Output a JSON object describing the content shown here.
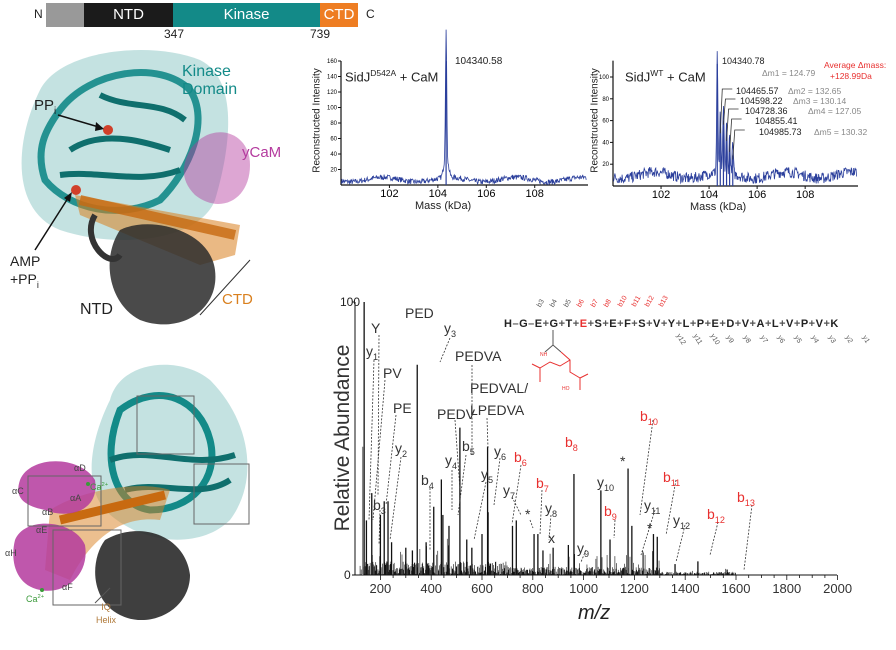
{
  "domain_bar": {
    "n_label": "N",
    "c_label": "C",
    "segments": [
      {
        "label": "NTD",
        "color": "#1b1b1b"
      },
      {
        "label": "Kinase",
        "color": "#138a88"
      },
      {
        "label": "CTD",
        "color": "#ee7d22"
      }
    ],
    "boundaries": [
      "347",
      "739"
    ]
  },
  "structure_top": {
    "kinase_label_1": "Kinase",
    "kinase_label_2": "Domain",
    "ppi_label": "PP",
    "ppi_sub": "i",
    "ycam_label": "yCaM",
    "amp_label_1": "AMP",
    "amp_label_2": "+PP",
    "amp_sub": "i",
    "ntd_label": "NTD",
    "ctd_label": "CTD"
  },
  "structure_bottom": {
    "helices": [
      "αD",
      "αC",
      "αA",
      "αB",
      "αE",
      "αH",
      "αF"
    ],
    "ca_label": "Ca",
    "ca_sup": "2+",
    "iq_label_1": "IQ",
    "iq_label_2": "Helix"
  },
  "colors": {
    "teal": "#138a88",
    "magenta": "#b43a9e",
    "orange": "#d9801f",
    "black": "#222222",
    "blue_trace": "#2b3f9c",
    "red": "#e8302f"
  },
  "chart_data": [
    {
      "type": "line",
      "title": "SidJ",
      "title_sup": "D542A",
      "title_rest": "+  CaM",
      "xlabel": "Mass (kDa)",
      "ylabel": "Reconstructed Intensity",
      "xlim": [
        100,
        110.2
      ],
      "ylim": [
        0,
        160
      ],
      "xticks": [
        "102",
        "104",
        "106",
        "108"
      ],
      "xtick_values": [
        102,
        104,
        106,
        108
      ],
      "yticks": [
        "20",
        "40",
        "60",
        "80",
        "100",
        "120",
        "140",
        "160"
      ],
      "ytick_values": [
        20,
        40,
        60,
        80,
        100,
        120,
        140,
        160
      ],
      "baseline_level": 7,
      "peaks": [
        {
          "x": 104.34,
          "y": 160,
          "label": "104340.58"
        }
      ]
    },
    {
      "type": "line",
      "title": "SidJ",
      "title_sup": "WT",
      "title_rest": "+  CaM",
      "xlabel": "Mass (kDa)",
      "ylabel": "Reconstructed Intensity",
      "xlim": [
        100,
        110.2
      ],
      "ylim": [
        0,
        115
      ],
      "xticks": [
        "102",
        "104",
        "106",
        "108"
      ],
      "xtick_values": [
        102,
        104,
        106,
        108
      ],
      "yticks": [
        "20",
        "40",
        "60",
        "80",
        "100"
      ],
      "ytick_values": [
        20,
        40,
        60,
        80,
        100
      ],
      "baseline_level": 10,
      "peaks": [
        {
          "x": 104.341,
          "y": 112,
          "label": "104340.78"
        },
        {
          "x": 104.466,
          "y": 52,
          "label": "104465.57"
        },
        {
          "x": 104.598,
          "y": 60,
          "label": "104598.22"
        },
        {
          "x": 104.728,
          "y": 45,
          "label": "104728.36"
        },
        {
          "x": 104.855,
          "y": 35,
          "label": "104855.41"
        },
        {
          "x": 104.986,
          "y": 28,
          "label": "104985.73"
        }
      ],
      "deltas": [
        "Δm1 = 124.79",
        "Δm2 = 132.65",
        "Δm3 = 130.14",
        "Δm4 = 127.05",
        "Δm5 = 130.32"
      ],
      "average_label": "Average Δmass:",
      "average_value": "+128.99Da"
    },
    {
      "type": "bar",
      "xlabel": "m/z",
      "ylabel": "Relative Abundance",
      "xlim": [
        100,
        2000
      ],
      "ylim": [
        0,
        100
      ],
      "xticks": [
        "200",
        "400",
        "600",
        "800",
        "1000",
        "1200",
        "1400",
        "1600",
        "1800",
        "2000"
      ],
      "xtick_values": [
        200,
        400,
        600,
        800,
        1000,
        1200,
        1400,
        1600,
        1800,
        2000
      ],
      "yticks": [
        "0",
        "100"
      ],
      "ytick_values": [
        0,
        100
      ],
      "peaks": [
        {
          "x": 130,
          "y": 47
        },
        {
          "x": 136,
          "y": 100
        },
        {
          "x": 145,
          "y": 20
        },
        {
          "x": 166,
          "y": 30
        },
        {
          "x": 200,
          "y": 22
        },
        {
          "x": 215,
          "y": 27
        },
        {
          "x": 230,
          "y": 27
        },
        {
          "x": 244,
          "y": 12
        },
        {
          "x": 300,
          "y": 10
        },
        {
          "x": 326,
          "y": 9
        },
        {
          "x": 345,
          "y": 77
        },
        {
          "x": 380,
          "y": 12
        },
        {
          "x": 410,
          "y": 25
        },
        {
          "x": 440,
          "y": 35
        },
        {
          "x": 446,
          "y": 22
        },
        {
          "x": 470,
          "y": 18
        },
        {
          "x": 513,
          "y": 54
        },
        {
          "x": 540,
          "y": 13
        },
        {
          "x": 560,
          "y": 10
        },
        {
          "x": 600,
          "y": 15
        },
        {
          "x": 622,
          "y": 47
        },
        {
          "x": 624,
          "y": 23
        },
        {
          "x": 720,
          "y": 18
        },
        {
          "x": 735,
          "y": 20
        },
        {
          "x": 805,
          "y": 15
        },
        {
          "x": 820,
          "y": 15
        },
        {
          "x": 840,
          "y": 9
        },
        {
          "x": 880,
          "y": 10
        },
        {
          "x": 940,
          "y": 11
        },
        {
          "x": 962,
          "y": 37
        },
        {
          "x": 1068,
          "y": 31
        },
        {
          "x": 1104,
          "y": 13
        },
        {
          "x": 1175,
          "y": 39
        },
        {
          "x": 1190,
          "y": 18
        },
        {
          "x": 1275,
          "y": 15
        },
        {
          "x": 1290,
          "y": 14
        },
        {
          "x": 1360,
          "y": 4
        },
        {
          "x": 1450,
          "y": 5
        },
        {
          "x": 1565,
          "y": 2
        }
      ],
      "annotations": [
        {
          "text": "Y",
          "sub": ""
        },
        {
          "text": "y",
          "sub": "1"
        },
        {
          "text": "PV",
          "sub": ""
        },
        {
          "text": "PE",
          "sub": ""
        },
        {
          "text": "y",
          "sub": "2"
        },
        {
          "text": "b",
          "sub": "3"
        },
        {
          "text": "PED",
          "sub": ""
        },
        {
          "text": "y",
          "sub": "3"
        },
        {
          "text": "PEDVA",
          "sub": ""
        },
        {
          "text": "PEDV",
          "sub": ""
        },
        {
          "text": "PEDVAL/",
          "sub": ""
        },
        {
          "text": "LPEDVA",
          "sub": ""
        },
        {
          "text": "b",
          "sub": "4"
        },
        {
          "text": "y",
          "sub": "4"
        },
        {
          "text": "b",
          "sub": "5"
        },
        {
          "text": "y",
          "sub": "5"
        },
        {
          "text": "y",
          "sub": "6"
        },
        {
          "text": "b",
          "sub": "6",
          "red": true
        },
        {
          "text": "y",
          "sub": "7"
        },
        {
          "text": "b",
          "sub": "7",
          "red": true
        },
        {
          "text": "*",
          "sub": ""
        },
        {
          "text": "y",
          "sub": "8"
        },
        {
          "text": "x",
          "sub": ""
        },
        {
          "text": "b",
          "sub": "8",
          "red": true
        },
        {
          "text": "y",
          "sub": "10"
        },
        {
          "text": "b",
          "sub": "9",
          "red": true
        },
        {
          "text": "y",
          "sub": "9"
        },
        {
          "text": "*",
          "sub": ""
        },
        {
          "text": "b",
          "sub": "10",
          "red": true
        },
        {
          "text": "y",
          "sub": "11"
        },
        {
          "text": "b",
          "sub": "11",
          "red": true
        },
        {
          "text": "*",
          "sub": ""
        },
        {
          "text": "y",
          "sub": "12"
        },
        {
          "text": "b",
          "sub": "12",
          "red": true
        },
        {
          "text": "b",
          "sub": "13",
          "red": true
        }
      ],
      "peptide": [
        "H",
        "G",
        "E",
        "G",
        "T",
        "E",
        "S",
        "E",
        "F",
        "S",
        "V",
        "Y",
        "L",
        "P",
        "E",
        "D",
        "V",
        "A",
        "L",
        "V",
        "P",
        "V",
        "K"
      ],
      "modified_residue_index": 5,
      "b_ions": [
        "b3",
        "b4",
        "b5",
        "b6",
        "b7",
        "b8",
        "b10",
        "b11",
        "b12",
        "b13"
      ],
      "y_ions": [
        "y12",
        "y11",
        "y10",
        "y9",
        "y8",
        "y7",
        "y6",
        "y5",
        "y4",
        "y3",
        "y2",
        "y1"
      ],
      "modification_labels": [
        "NH",
        "HO"
      ]
    }
  ]
}
